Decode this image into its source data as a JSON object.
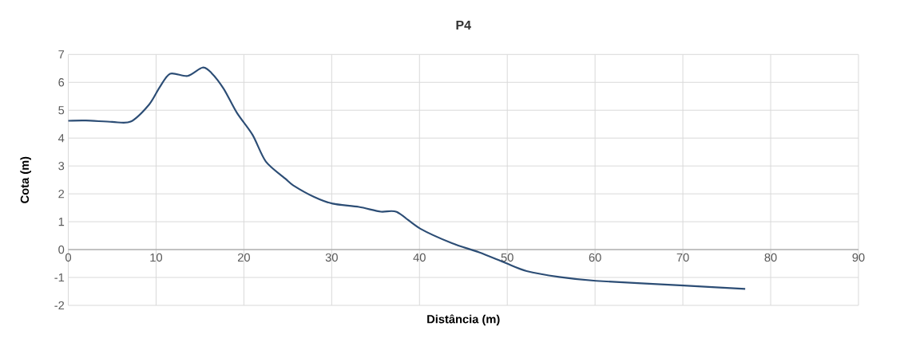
{
  "chart_data": {
    "type": "line",
    "title": "P4",
    "xlabel": "Distância (m)",
    "ylabel": "Cota (m)",
    "x": [
      0,
      2,
      5,
      7.1,
      9.2,
      10.4,
      11.6,
      13.6,
      15.3,
      16.3,
      17.7,
      19.2,
      21.0,
      22.5,
      24.7,
      25.6,
      28.0,
      30.1,
      33.1,
      35.6,
      37.4,
      40.1,
      43.7,
      46.8,
      49.8,
      52.2,
      55.9,
      60.1,
      70.1,
      77.1
    ],
    "values": [
      4.62,
      4.63,
      4.58,
      4.59,
      5.2,
      5.82,
      6.31,
      6.23,
      6.53,
      6.34,
      5.77,
      4.91,
      4.11,
      3.16,
      2.55,
      2.31,
      1.89,
      1.65,
      1.53,
      1.36,
      1.35,
      0.75,
      0.23,
      -0.1,
      -0.48,
      -0.77,
      -0.98,
      -1.12,
      -1.29,
      -1.41
    ],
    "color": "#2c4d75",
    "xlim": [
      0,
      90
    ],
    "ylim": [
      -2,
      7
    ],
    "xticks": [
      0,
      10,
      20,
      30,
      40,
      50,
      60,
      70,
      80,
      90
    ],
    "yticks": [
      -2,
      -1,
      0,
      1,
      2,
      3,
      4,
      5,
      6,
      7
    ],
    "grid": true
  }
}
